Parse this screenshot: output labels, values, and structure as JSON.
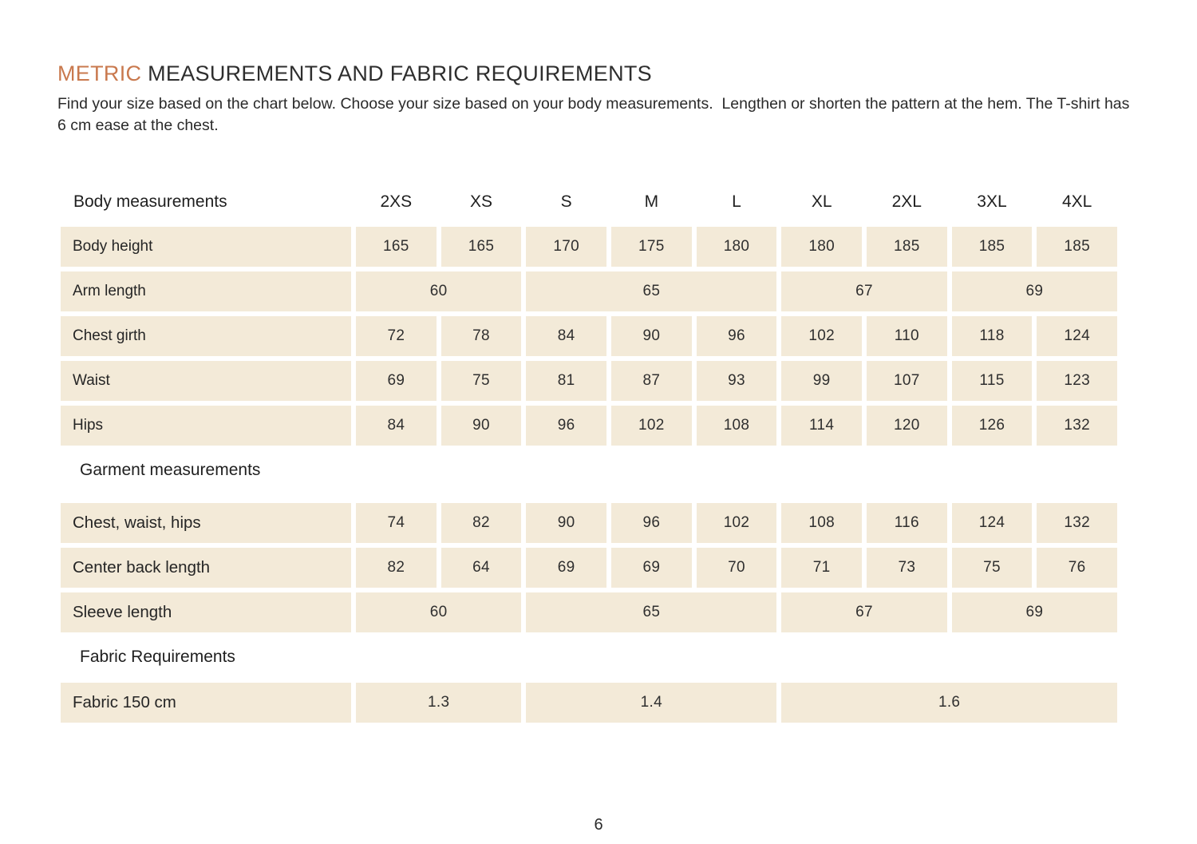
{
  "page": {
    "title_accent": "METRIC",
    "title_rest": " MEASUREMENTS AND FABRIC REQUIREMENTS",
    "intro": "Find your size based on the chart below. Choose your size based on your body measurements.  Lengthen or shorten the pattern at the hem. The T-shirt has 6 cm ease at the chest.",
    "page_number": "6"
  },
  "colors": {
    "accent": "#c9794e",
    "cell_bg": "#f3ead8",
    "text": "#2b2b2b"
  },
  "tables": {
    "sizes": [
      "2XS",
      "XS",
      "S",
      "M",
      "L",
      "XL",
      "2XL",
      "3XL",
      "4XL"
    ],
    "body": {
      "heading": "Body measurements",
      "rows": [
        {
          "label": "Body height",
          "cells": [
            [
              "165",
              1
            ],
            [
              "165",
              1
            ],
            [
              "170",
              1
            ],
            [
              "175",
              1
            ],
            [
              "180",
              1
            ],
            [
              "180",
              1
            ],
            [
              "185",
              1
            ],
            [
              "185",
              1
            ],
            [
              "185",
              1
            ]
          ]
        },
        {
          "label": "Arm length",
          "cells": [
            [
              "60",
              2
            ],
            [
              "65",
              3
            ],
            [
              "67",
              2
            ],
            [
              "69",
              2
            ]
          ]
        },
        {
          "label": "Chest girth",
          "cells": [
            [
              "72",
              1
            ],
            [
              "78",
              1
            ],
            [
              "84",
              1
            ],
            [
              "90",
              1
            ],
            [
              "96",
              1
            ],
            [
              "102",
              1
            ],
            [
              "110",
              1
            ],
            [
              "118",
              1
            ],
            [
              "124",
              1
            ]
          ]
        },
        {
          "label": "Waist",
          "cells": [
            [
              "69",
              1
            ],
            [
              "75",
              1
            ],
            [
              "81",
              1
            ],
            [
              "87",
              1
            ],
            [
              "93",
              1
            ],
            [
              "99",
              1
            ],
            [
              "107",
              1
            ],
            [
              "115",
              1
            ],
            [
              "123",
              1
            ]
          ]
        },
        {
          "label": "Hips",
          "cells": [
            [
              "84",
              1
            ],
            [
              "90",
              1
            ],
            [
              "96",
              1
            ],
            [
              "102",
              1
            ],
            [
              "108",
              1
            ],
            [
              "114",
              1
            ],
            [
              "120",
              1
            ],
            [
              "126",
              1
            ],
            [
              "132",
              1
            ]
          ]
        }
      ]
    },
    "garment": {
      "heading": "Garment measurements",
      "rows": [
        {
          "label": "Chest, waist, hips",
          "cells": [
            [
              "74",
              1
            ],
            [
              "82",
              1
            ],
            [
              "90",
              1
            ],
            [
              "96",
              1
            ],
            [
              "102",
              1
            ],
            [
              "108",
              1
            ],
            [
              "116",
              1
            ],
            [
              "124",
              1
            ],
            [
              "132",
              1
            ]
          ]
        },
        {
          "label": "Center back length",
          "cells": [
            [
              "82",
              1
            ],
            [
              "64",
              1
            ],
            [
              "69",
              1
            ],
            [
              "69",
              1
            ],
            [
              "70",
              1
            ],
            [
              "71",
              1
            ],
            [
              "73",
              1
            ],
            [
              "75",
              1
            ],
            [
              "76",
              1
            ]
          ]
        },
        {
          "label": "Sleeve length",
          "cells": [
            [
              "60",
              2
            ],
            [
              "65",
              3
            ],
            [
              "67",
              2
            ],
            [
              "69",
              2
            ]
          ]
        }
      ]
    },
    "fabric": {
      "heading": "Fabric Requirements",
      "rows": [
        {
          "label": "Fabric 150 cm",
          "cells": [
            [
              "1.3",
              2
            ],
            [
              "1.4",
              3
            ],
            [
              "1.6",
              4
            ]
          ]
        }
      ]
    }
  }
}
